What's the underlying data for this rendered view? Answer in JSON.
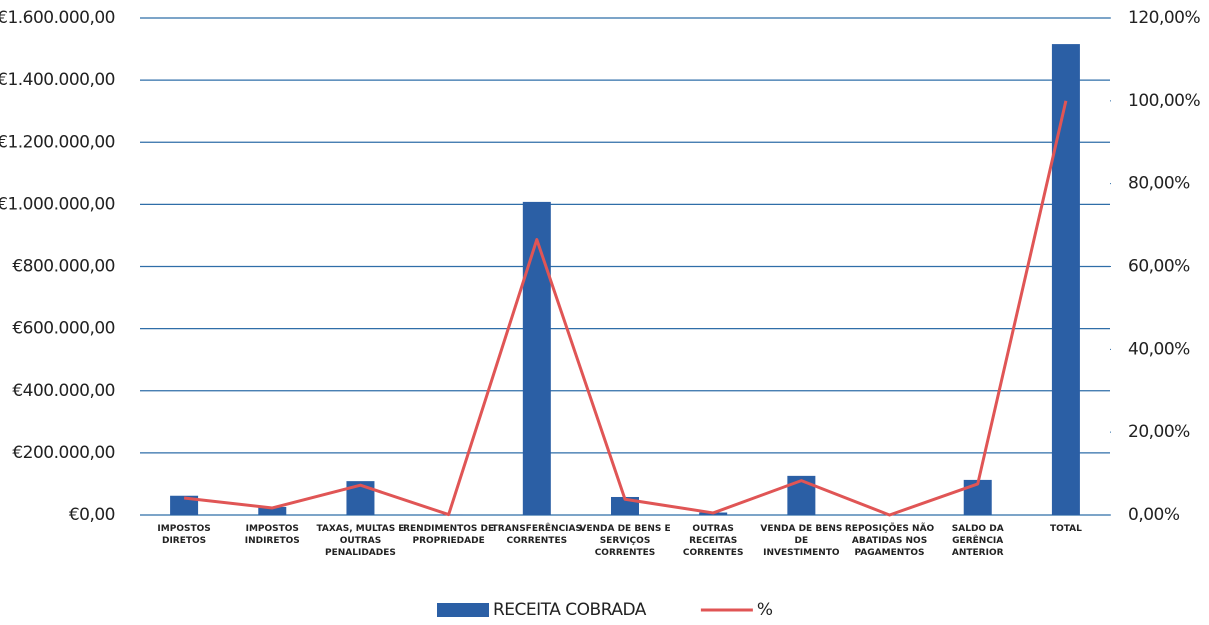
{
  "chart_data": {
    "type": "bar",
    "categories": [
      "IMPOSTOS DIRETOS",
      "IMPOSTOS INDIRETOS",
      "TAXAS, MULTAS E OUTRAS PENALIDADES",
      "RENDIMENTOS DE PROPRIEDADE",
      "TRANSFERÊNCIAS CORRENTES",
      "VENDA DE BENS E SERVIÇOS CORRENTES",
      "OUTRAS RECEITAS CORRENTES",
      "VENDA DE BENS DE INVESTIMENTO",
      "REPOSIÇÕES NÃO ABATIDAS NOS PAGAMENTOS",
      "SALDO DA GERÊNCIA ANTERIOR",
      "TOTAL"
    ],
    "series": [
      {
        "name": "RECEITA COBRADA",
        "type": "bar",
        "color": "#2b5fa5",
        "values": [
          62000,
          26000,
          109000,
          1000,
          1008000,
          58000,
          8000,
          126000,
          500,
          113000,
          1516000
        ]
      },
      {
        "name": "%",
        "type": "line",
        "axis": "y2",
        "color": "#e05555",
        "values": [
          4.1,
          1.7,
          7.2,
          0.1,
          66.5,
          3.8,
          0.5,
          8.3,
          0.0,
          7.5,
          100
        ]
      }
    ],
    "ylim": [
      0,
      1600000
    ],
    "yticks": [
      {
        "value": 0,
        "label": "€0,00"
      },
      {
        "value": 200000,
        "label": "€200.000,00"
      },
      {
        "value": 400000,
        "label": "€400.000,00"
      },
      {
        "value": 600000,
        "label": "€600.000,00"
      },
      {
        "value": 800000,
        "label": "€800.000,00"
      },
      {
        "value": 1000000,
        "label": "€1.000.000,00"
      },
      {
        "value": 1200000,
        "label": "€1.200.000,00"
      },
      {
        "value": 1400000,
        "label": "€1.400.000,00"
      },
      {
        "value": 1600000,
        "label": "€1.600.000,00"
      }
    ],
    "y2lim": [
      0,
      120
    ],
    "y2ticks": [
      {
        "value": 0,
        "label": "0,00%"
      },
      {
        "value": 20,
        "label": "20,00%"
      },
      {
        "value": 40,
        "label": "40,00%"
      },
      {
        "value": 60,
        "label": "60,00%"
      },
      {
        "value": 80,
        "label": "80,00%"
      },
      {
        "value": 100,
        "label": "100,00%"
      },
      {
        "value": 120,
        "label": "120,00%"
      }
    ],
    "grid": true,
    "grid_color": "#2f6ea8",
    "legend": "bottom"
  }
}
